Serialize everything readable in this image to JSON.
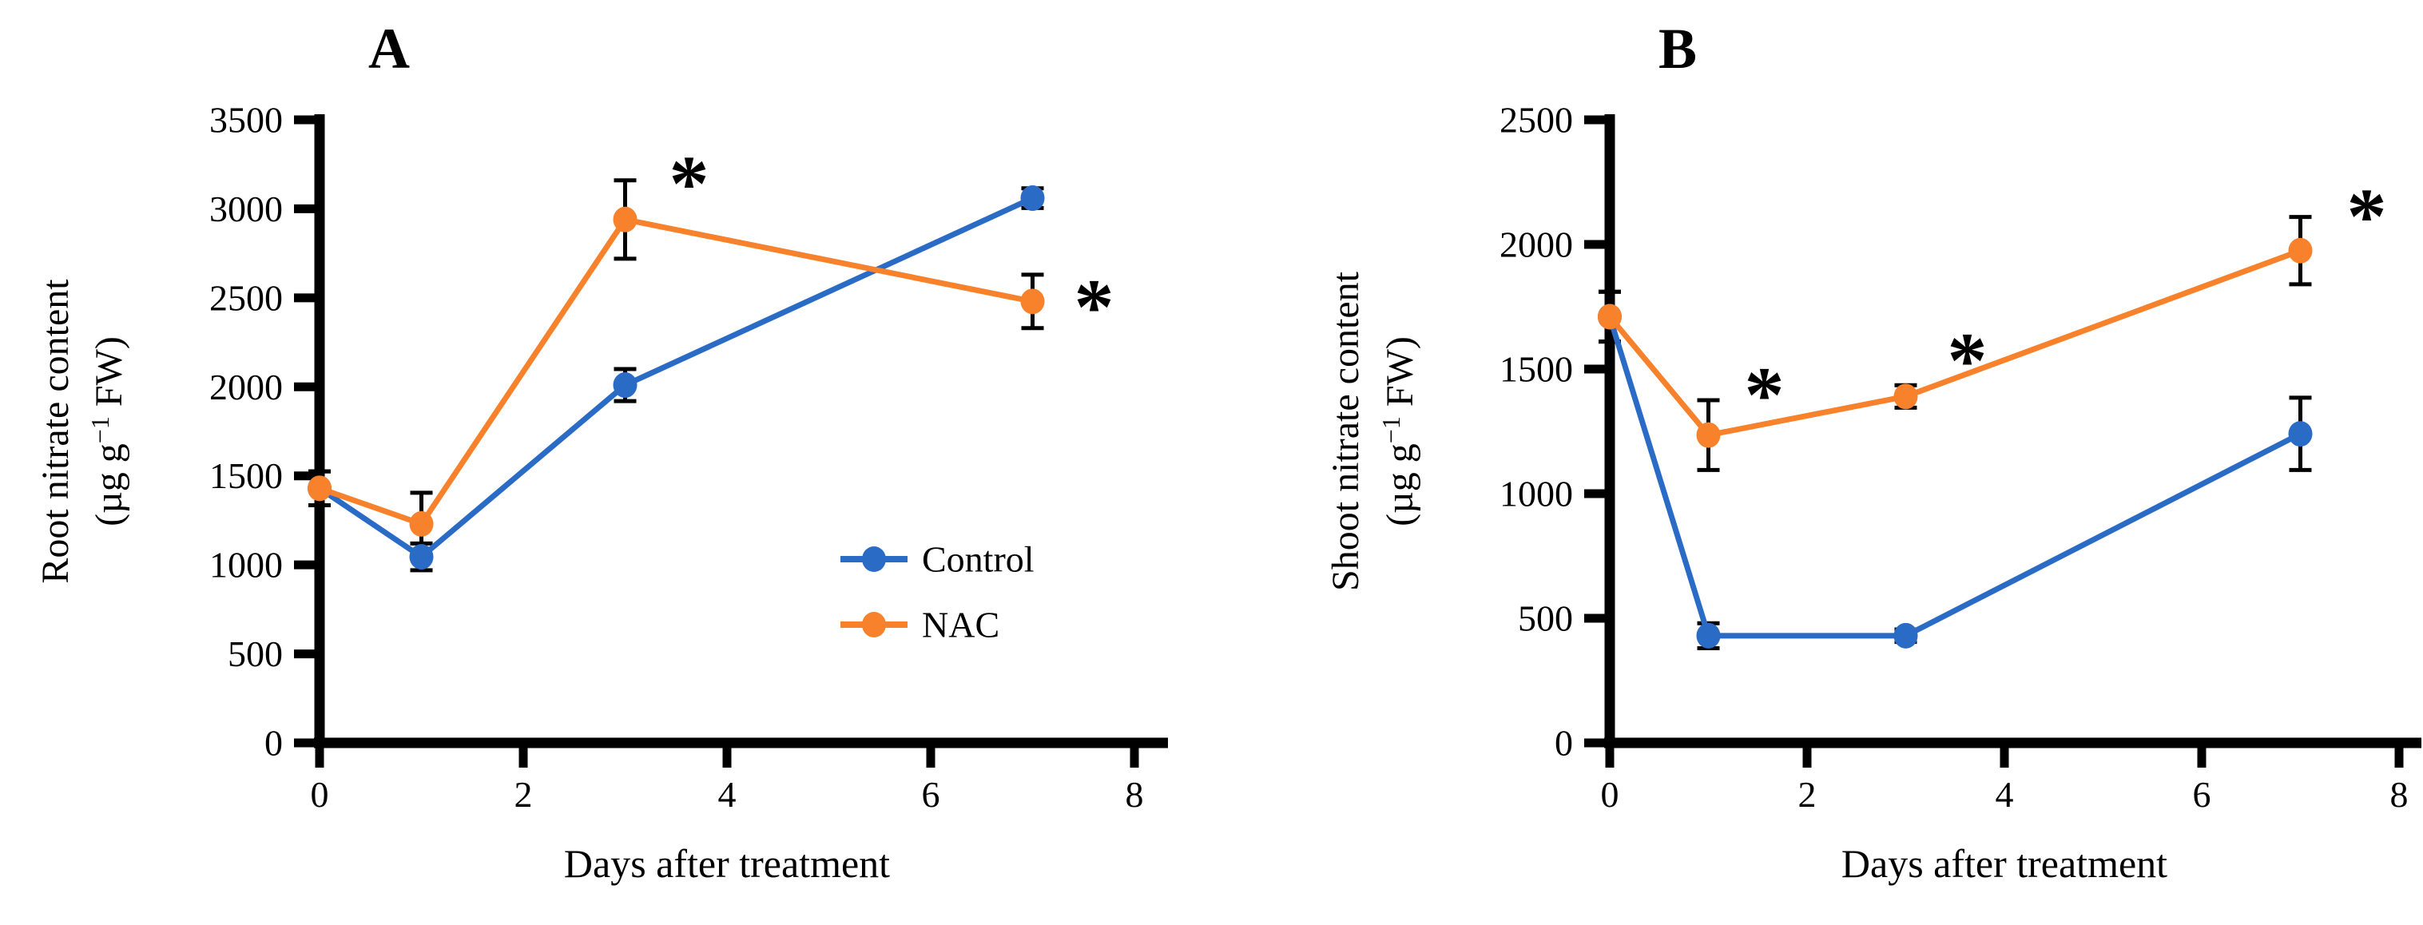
{
  "figure": {
    "panels": [
      {
        "label": "A",
        "y_title_line1": "Root nitrate content",
        "y_unit_prefix": "(µg g",
        "y_unit_sup": "−1",
        "y_unit_suffix": " FW)",
        "x_title": "Days after treatment"
      },
      {
        "label": "B",
        "y_title_line1": "Shoot nitrate content",
        "y_unit_prefix": "(µg g",
        "y_unit_sup": "−1",
        "y_unit_suffix": " FW)",
        "x_title": "Days after treatment"
      }
    ],
    "legend": {
      "items": [
        {
          "label": "Control",
          "color": "#2A6BC5"
        },
        {
          "label": "NAC",
          "color": "#F8812B"
        }
      ]
    },
    "significance_marker": "*",
    "colors": {
      "control": "#2A6BC5",
      "nac": "#F8812B",
      "axis": "#000000",
      "error_bar": "#000000"
    }
  },
  "chart_data": [
    {
      "type": "line",
      "panel": "A",
      "title": "A",
      "x": [
        0,
        1,
        3,
        7
      ],
      "xlabel": "Days after treatment",
      "ylabel": "Root nitrate content (µg g−1 FW)",
      "xlim": [
        0,
        8
      ],
      "ylim": [
        0,
        3500
      ],
      "xticks": [
        0,
        2,
        4,
        6,
        8
      ],
      "yticks": [
        0,
        500,
        1000,
        1500,
        2000,
        2500,
        3000,
        3500
      ],
      "grid": false,
      "legend_position": "inside-right",
      "series": [
        {
          "name": "Control",
          "color": "#2A6BC5",
          "values": [
            1430,
            1045,
            2010,
            3060
          ],
          "errors": [
            95,
            75,
            90,
            55
          ],
          "significant": [
            false,
            false,
            false,
            false
          ]
        },
        {
          "name": "NAC",
          "color": "#F8812B",
          "values": [
            1430,
            1230,
            2940,
            2480
          ],
          "errors": [
            95,
            175,
            220,
            150
          ],
          "significant": [
            false,
            false,
            true,
            true
          ]
        }
      ]
    },
    {
      "type": "line",
      "panel": "B",
      "title": "B",
      "x": [
        0,
        1,
        3,
        7
      ],
      "xlabel": "Days after treatment",
      "ylabel": "Shoot nitrate content (µg g−1 FW)",
      "xlim": [
        0,
        8
      ],
      "ylim": [
        0,
        2500
      ],
      "xticks": [
        0,
        2,
        4,
        6,
        8
      ],
      "yticks": [
        0,
        500,
        1000,
        1500,
        2000,
        2500
      ],
      "grid": false,
      "legend_position": "none",
      "series": [
        {
          "name": "Control",
          "color": "#2A6BC5",
          "values": [
            1710,
            430,
            430,
            1240
          ],
          "errors": [
            100,
            50,
            25,
            145
          ],
          "significant": [
            false,
            false,
            false,
            false
          ]
        },
        {
          "name": "NAC",
          "color": "#F8812B",
          "values": [
            1710,
            1235,
            1390,
            1975
          ],
          "errors": [
            100,
            140,
            45,
            135
          ],
          "significant": [
            false,
            true,
            true,
            true
          ]
        }
      ]
    }
  ]
}
